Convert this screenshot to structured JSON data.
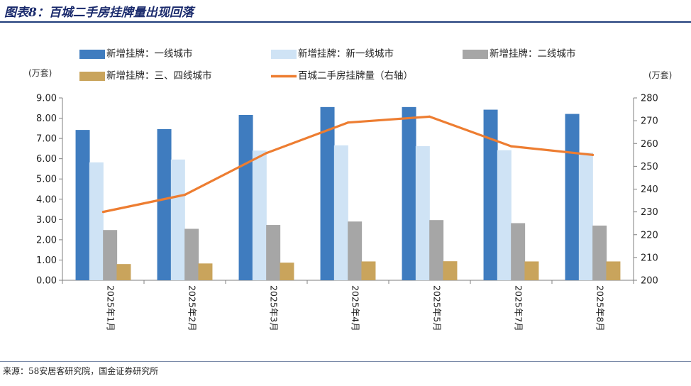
{
  "title": "图表8：百城二手房挂牌量出现回落",
  "source": "来源：58安居客研究院，国金证券研究所",
  "chart_data": {
    "type": "bar",
    "categories": [
      "2025年1月",
      "2025年2月",
      "2025年3月",
      "2025年4月",
      "2025年5月",
      "2025年7月",
      "2025年8月"
    ],
    "series": [
      {
        "name": "新增挂牌：一线城市",
        "type": "bar",
        "axis": "left",
        "color": "#3f7cbf",
        "values": [
          7.42,
          7.46,
          8.16,
          8.55,
          8.55,
          8.42,
          8.21
        ]
      },
      {
        "name": "新增挂牌：新一线城市",
        "type": "bar",
        "axis": "left",
        "color": "#cfe3f5",
        "values": [
          5.82,
          5.96,
          6.4,
          6.66,
          6.62,
          6.42,
          6.3
        ]
      },
      {
        "name": "新增挂牌：二线城市",
        "type": "bar",
        "axis": "left",
        "color": "#a6a6a6",
        "values": [
          2.48,
          2.54,
          2.73,
          2.9,
          2.97,
          2.82,
          2.7
        ]
      },
      {
        "name": "新增挂牌：三、四线城市",
        "type": "bar",
        "axis": "left",
        "color": "#c9a45c",
        "values": [
          0.8,
          0.83,
          0.87,
          0.93,
          0.94,
          0.93,
          0.93
        ]
      },
      {
        "name": "百城二手房挂牌量（右轴）",
        "type": "line",
        "axis": "right",
        "color": "#ed7d31",
        "values": [
          230.0,
          237.5,
          255.8,
          269.2,
          271.8,
          258.8,
          255.0
        ]
      }
    ],
    "y_left": {
      "unit": "(万套)",
      "ylim": [
        0,
        9
      ],
      "ticks": [
        "0.00",
        "1.00",
        "2.00",
        "3.00",
        "4.00",
        "5.00",
        "6.00",
        "7.00",
        "8.00",
        "9.00"
      ]
    },
    "y_right": {
      "unit": "(万套)",
      "ylim": [
        200,
        280
      ],
      "ticks": [
        "200",
        "210",
        "220",
        "230",
        "240",
        "250",
        "260",
        "270",
        "280"
      ]
    },
    "grid": false,
    "legend_position": "top"
  }
}
